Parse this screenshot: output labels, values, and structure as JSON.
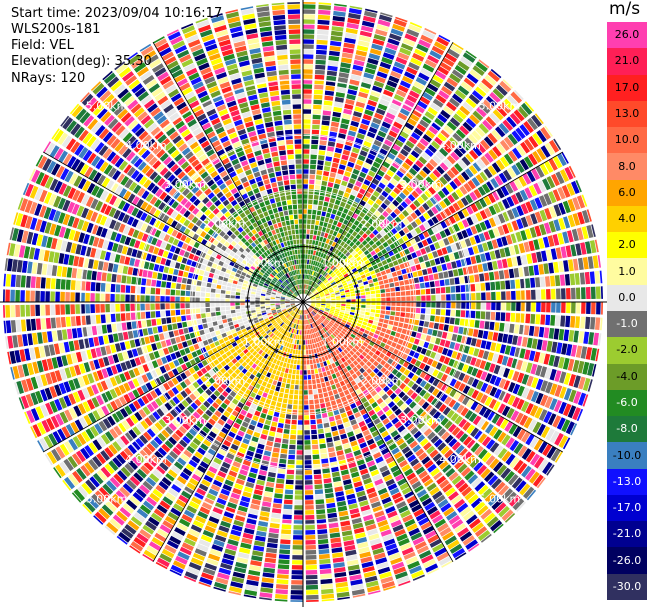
{
  "header": {
    "start_time": "Start time: 2023/09/04 10:16:17",
    "device": "WLS200s-181",
    "field": "Field: VEL",
    "elevation": "Elevation(deg): 35.30",
    "nrays": "NRays: 120"
  },
  "chart_data": {
    "type": "heatmap",
    "projection": "polar-ppi",
    "unit": "m/s",
    "field": "VEL",
    "nrays": 120,
    "range_rings_km": [
      1.0,
      2.0,
      3.0,
      4.0,
      5.0
    ],
    "ring_labels": [
      "1.00km",
      "2.00km",
      "3.00km",
      "4.00km",
      "5.00km"
    ],
    "max_range_km": 5.4,
    "colorbar": {
      "labels": [
        "26.0",
        "21.0",
        "17.0",
        "13.0",
        "10.0",
        "8.0",
        "6.0",
        "4.0",
        "2.0",
        "1.0",
        "0.0",
        "-1.0",
        "-2.0",
        "-4.0",
        "-6.0",
        "-8.0",
        "-10.0",
        "-13.0",
        "-17.0",
        "-21.0",
        "-26.0",
        "-30.0"
      ],
      "colors": [
        "#ff3fb0",
        "#ff1f56",
        "#ff2020",
        "#ff4a2a",
        "#ff6a45",
        "#ff8a66",
        "#ffa500",
        "#ffd000",
        "#ffff00",
        "#fffca0",
        "#e8e8e8",
        "#707070",
        "#9ccc30",
        "#6c9c28",
        "#228b22",
        "#1e7a3a",
        "#3a7fc0",
        "#1010ff",
        "#0000d0",
        "#000090",
        "#000060",
        "#303060"
      ]
    },
    "near_field_pattern": [
      {
        "sector": "north-west",
        "range_km": [
          0.0,
          1.0
        ],
        "velocity_ms": -8.0
      },
      {
        "sector": "north",
        "range_km": [
          0.0,
          2.0
        ],
        "velocity_ms": -5.0
      },
      {
        "sector": "west",
        "range_km": [
          0.0,
          2.0
        ],
        "velocity_ms": 0.0
      },
      {
        "sector": "east",
        "range_km": [
          0.0,
          1.4
        ],
        "velocity_ms": 2.0
      },
      {
        "sector": "south-east",
        "range_km": [
          0.0,
          2.0
        ],
        "velocity_ms": 10.0
      },
      {
        "sector": "south-west",
        "range_km": [
          0.0,
          2.0
        ],
        "velocity_ms": 4.0
      }
    ]
  }
}
